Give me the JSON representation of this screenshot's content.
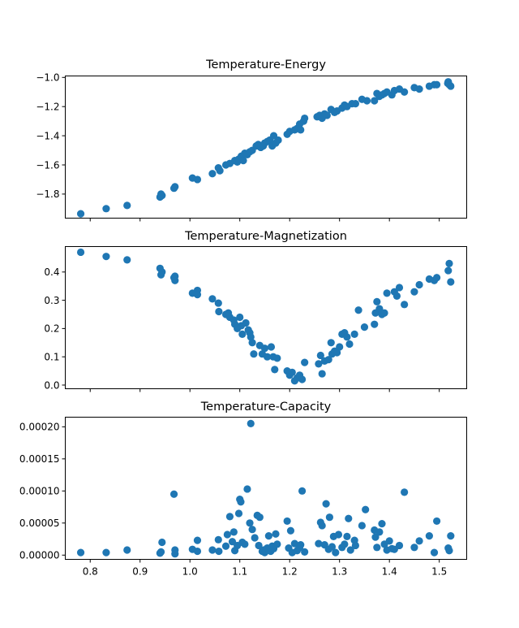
{
  "chart_data": [
    {
      "type": "scatter",
      "title": "Temperature-Energy",
      "xlabel": "",
      "ylabel": "",
      "xlim": [
        0.75,
        1.555
      ],
      "ylim": [
        -1.965,
        -0.99
      ],
      "xticks": [],
      "yticks": [
        {
          "v": -1.0,
          "label": "−1.0"
        },
        {
          "v": -1.2,
          "label": "−1.2"
        },
        {
          "v": -1.4,
          "label": "−1.4"
        },
        {
          "v": -1.6,
          "label": "−1.6"
        },
        {
          "v": -1.8,
          "label": "−1.8"
        }
      ],
      "color": "#1f77b4",
      "points": [
        [
          0.781,
          -1.935
        ],
        [
          0.832,
          -1.9
        ],
        [
          0.874,
          -1.878
        ],
        [
          0.94,
          -1.82
        ],
        [
          0.942,
          -1.8
        ],
        [
          0.944,
          -1.81
        ],
        [
          0.968,
          -1.76
        ],
        [
          0.97,
          -1.75
        ],
        [
          1.005,
          -1.69
        ],
        [
          1.015,
          -1.7
        ],
        [
          1.045,
          -1.66
        ],
        [
          1.057,
          -1.62
        ],
        [
          1.06,
          -1.64
        ],
        [
          1.072,
          -1.6
        ],
        [
          1.08,
          -1.59
        ],
        [
          1.09,
          -1.57
        ],
        [
          1.095,
          -1.58
        ],
        [
          1.098,
          -1.56
        ],
        [
          1.103,
          -1.54
        ],
        [
          1.107,
          -1.57
        ],
        [
          1.11,
          -1.52
        ],
        [
          1.115,
          -1.53
        ],
        [
          1.12,
          -1.51
        ],
        [
          1.125,
          -1.5
        ],
        [
          1.133,
          -1.47
        ],
        [
          1.137,
          -1.46
        ],
        [
          1.142,
          -1.48
        ],
        [
          1.147,
          -1.47
        ],
        [
          1.15,
          -1.45
        ],
        [
          1.155,
          -1.44
        ],
        [
          1.16,
          -1.43
        ],
        [
          1.165,
          -1.47
        ],
        [
          1.168,
          -1.4
        ],
        [
          1.172,
          -1.45
        ],
        [
          1.177,
          -1.43
        ],
        [
          1.195,
          -1.39
        ],
        [
          1.2,
          -1.37
        ],
        [
          1.21,
          -1.36
        ],
        [
          1.215,
          -1.35
        ],
        [
          1.22,
          -1.32
        ],
        [
          1.222,
          -1.36
        ],
        [
          1.228,
          -1.3
        ],
        [
          1.23,
          -1.28
        ],
        [
          1.255,
          -1.27
        ],
        [
          1.26,
          -1.26
        ],
        [
          1.265,
          -1.28
        ],
        [
          1.27,
          -1.25
        ],
        [
          1.275,
          -1.26
        ],
        [
          1.283,
          -1.22
        ],
        [
          1.29,
          -1.24
        ],
        [
          1.295,
          -1.23
        ],
        [
          1.305,
          -1.21
        ],
        [
          1.31,
          -1.19
        ],
        [
          1.315,
          -1.2
        ],
        [
          1.325,
          -1.18
        ],
        [
          1.332,
          -1.18
        ],
        [
          1.345,
          -1.15
        ],
        [
          1.355,
          -1.16
        ],
        [
          1.37,
          -1.16
        ],
        [
          1.375,
          -1.11
        ],
        [
          1.38,
          -1.13
        ],
        [
          1.385,
          -1.12
        ],
        [
          1.39,
          -1.11
        ],
        [
          1.395,
          -1.1
        ],
        [
          1.405,
          -1.12
        ],
        [
          1.41,
          -1.09
        ],
        [
          1.42,
          -1.08
        ],
        [
          1.43,
          -1.1
        ],
        [
          1.45,
          -1.07
        ],
        [
          1.46,
          -1.08
        ],
        [
          1.48,
          -1.06
        ],
        [
          1.49,
          -1.05
        ],
        [
          1.495,
          -1.05
        ],
        [
          1.517,
          -1.04
        ],
        [
          1.52,
          -1.05
        ],
        [
          1.523,
          -1.06
        ],
        [
          1.518,
          -1.03
        ]
      ]
    },
    {
      "type": "scatter",
      "title": "Temperature-Magnetization",
      "xlabel": "",
      "ylabel": "",
      "xlim": [
        0.75,
        1.555
      ],
      "ylim": [
        -0.013,
        0.49
      ],
      "xticks": [],
      "yticks": [
        {
          "v": 0.0,
          "label": "0.0"
        },
        {
          "v": 0.1,
          "label": "0.1"
        },
        {
          "v": 0.2,
          "label": "0.2"
        },
        {
          "v": 0.3,
          "label": "0.3"
        },
        {
          "v": 0.4,
          "label": "0.4"
        }
      ],
      "color": "#1f77b4",
      "points": [
        [
          0.781,
          0.47
        ],
        [
          0.832,
          0.455
        ],
        [
          0.874,
          0.443
        ],
        [
          0.94,
          0.413
        ],
        [
          0.944,
          0.4
        ],
        [
          0.942,
          0.39
        ],
        [
          0.968,
          0.38
        ],
        [
          0.97,
          0.37
        ],
        [
          0.97,
          0.385
        ],
        [
          1.005,
          0.325
        ],
        [
          1.015,
          0.335
        ],
        [
          1.015,
          0.32
        ],
        [
          1.045,
          0.305
        ],
        [
          1.057,
          0.29
        ],
        [
          1.058,
          0.26
        ],
        [
          1.072,
          0.25
        ],
        [
          1.077,
          0.255
        ],
        [
          1.08,
          0.24
        ],
        [
          1.088,
          0.23
        ],
        [
          1.09,
          0.215
        ],
        [
          1.095,
          0.2
        ],
        [
          1.1,
          0.24
        ],
        [
          1.103,
          0.21
        ],
        [
          1.105,
          0.18
        ],
        [
          1.112,
          0.22
        ],
        [
          1.117,
          0.195
        ],
        [
          1.12,
          0.185
        ],
        [
          1.122,
          0.17
        ],
        [
          1.125,
          0.15
        ],
        [
          1.128,
          0.11
        ],
        [
          1.14,
          0.14
        ],
        [
          1.145,
          0.11
        ],
        [
          1.15,
          0.13
        ],
        [
          1.155,
          0.1
        ],
        [
          1.163,
          0.135
        ],
        [
          1.167,
          0.1
        ],
        [
          1.17,
          0.055
        ],
        [
          1.175,
          0.095
        ],
        [
          1.195,
          0.05
        ],
        [
          1.2,
          0.035
        ],
        [
          1.205,
          0.045
        ],
        [
          1.21,
          0.015
        ],
        [
          1.215,
          0.025
        ],
        [
          1.22,
          0.035
        ],
        [
          1.225,
          0.02
        ],
        [
          1.23,
          0.08
        ],
        [
          1.258,
          0.075
        ],
        [
          1.262,
          0.105
        ],
        [
          1.265,
          0.04
        ],
        [
          1.27,
          0.085
        ],
        [
          1.278,
          0.09
        ],
        [
          1.283,
          0.15
        ],
        [
          1.285,
          0.11
        ],
        [
          1.29,
          0.12
        ],
        [
          1.295,
          0.115
        ],
        [
          1.3,
          0.135
        ],
        [
          1.305,
          0.18
        ],
        [
          1.31,
          0.185
        ],
        [
          1.315,
          0.17
        ],
        [
          1.32,
          0.145
        ],
        [
          1.33,
          0.18
        ],
        [
          1.338,
          0.265
        ],
        [
          1.35,
          0.205
        ],
        [
          1.37,
          0.215
        ],
        [
          1.372,
          0.255
        ],
        [
          1.375,
          0.295
        ],
        [
          1.38,
          0.27
        ],
        [
          1.385,
          0.25
        ],
        [
          1.39,
          0.255
        ],
        [
          1.395,
          0.325
        ],
        [
          1.41,
          0.33
        ],
        [
          1.415,
          0.315
        ],
        [
          1.42,
          0.345
        ],
        [
          1.43,
          0.285
        ],
        [
          1.45,
          0.33
        ],
        [
          1.46,
          0.355
        ],
        [
          1.48,
          0.375
        ],
        [
          1.49,
          0.37
        ],
        [
          1.495,
          0.38
        ],
        [
          1.52,
          0.43
        ],
        [
          1.518,
          0.405
        ],
        [
          1.523,
          0.365
        ]
      ]
    },
    {
      "type": "scatter",
      "title": "Temperature-Capacity",
      "xlabel": "",
      "ylabel": "",
      "xlim": [
        0.75,
        1.555
      ],
      "ylim": [
        -6.6e-06,
        0.000215
      ],
      "xticks": [
        {
          "v": 0.8,
          "label": "0.8"
        },
        {
          "v": 0.9,
          "label": "0.9"
        },
        {
          "v": 1.0,
          "label": "1.0"
        },
        {
          "v": 1.1,
          "label": "1.1"
        },
        {
          "v": 1.2,
          "label": "1.2"
        },
        {
          "v": 1.3,
          "label": "1.3"
        },
        {
          "v": 1.4,
          "label": "1.4"
        },
        {
          "v": 1.5,
          "label": "1.5"
        }
      ],
      "yticks": [
        {
          "v": 0.0,
          "label": "0.00000"
        },
        {
          "v": 5e-05,
          "label": "0.00005"
        },
        {
          "v": 0.0001,
          "label": "0.00010"
        },
        {
          "v": 0.00015,
          "label": "0.00015"
        },
        {
          "v": 0.0002,
          "label": "0.00020"
        }
      ],
      "color": "#1f77b4",
      "points": [
        [
          0.781,
          4e-06
        ],
        [
          0.832,
          4e-06
        ],
        [
          0.874,
          8e-06
        ],
        [
          0.94,
          3e-06
        ],
        [
          0.942,
          5e-06
        ],
        [
          0.944,
          2e-05
        ],
        [
          0.968,
          9.5e-05
        ],
        [
          0.97,
          8e-06
        ],
        [
          0.97,
          2e-06
        ],
        [
          1.005,
          9e-06
        ],
        [
          1.015,
          6e-06
        ],
        [
          1.015,
          2.3e-05
        ],
        [
          1.045,
          8e-06
        ],
        [
          1.057,
          2.4e-05
        ],
        [
          1.058,
          6e-06
        ],
        [
          1.072,
          1.4e-05
        ],
        [
          1.075,
          3.2e-05
        ],
        [
          1.08,
          6e-05
        ],
        [
          1.085,
          2.1e-05
        ],
        [
          1.088,
          3.6e-05
        ],
        [
          1.09,
          7e-06
        ],
        [
          1.095,
          1.5e-05
        ],
        [
          1.098,
          6.5e-05
        ],
        [
          1.1,
          8.7e-05
        ],
        [
          1.102,
          8.3e-05
        ],
        [
          1.105,
          2e-05
        ],
        [
          1.11,
          1.7e-05
        ],
        [
          1.115,
          0.000103
        ],
        [
          1.12,
          5e-05
        ],
        [
          1.122,
          0.000205
        ],
        [
          1.125,
          4e-05
        ],
        [
          1.13,
          2.7e-05
        ],
        [
          1.135,
          6.2e-05
        ],
        [
          1.138,
          1.5e-05
        ],
        [
          1.14,
          5.9e-05
        ],
        [
          1.145,
          6e-06
        ],
        [
          1.148,
          8e-06
        ],
        [
          1.15,
          4e-06
        ],
        [
          1.155,
          1.1e-05
        ],
        [
          1.158,
          3e-05
        ],
        [
          1.162,
          6e-06
        ],
        [
          1.165,
          1.4e-05
        ],
        [
          1.168,
          1e-05
        ],
        [
          1.172,
          3.3e-05
        ],
        [
          1.175,
          1.7e-05
        ],
        [
          1.195,
          5.3e-05
        ],
        [
          1.198,
          1.1e-05
        ],
        [
          1.202,
          3.8e-05
        ],
        [
          1.205,
          4e-06
        ],
        [
          1.21,
          1.8e-05
        ],
        [
          1.215,
          7e-06
        ],
        [
          1.22,
          1.2e-05
        ],
        [
          1.222,
          1.6e-05
        ],
        [
          1.225,
          0.0001
        ],
        [
          1.23,
          5e-06
        ],
        [
          1.258,
          1.8e-05
        ],
        [
          1.262,
          5.1e-05
        ],
        [
          1.265,
          4.6e-05
        ],
        [
          1.27,
          1.6e-05
        ],
        [
          1.273,
          8e-05
        ],
        [
          1.278,
          9e-06
        ],
        [
          1.28,
          5.9e-05
        ],
        [
          1.285,
          1.3e-05
        ],
        [
          1.288,
          2.9e-05
        ],
        [
          1.292,
          4e-06
        ],
        [
          1.298,
          3.2e-05
        ],
        [
          1.305,
          1.2e-05
        ],
        [
          1.31,
          1.7e-05
        ],
        [
          1.315,
          2.9e-05
        ],
        [
          1.318,
          5.7e-05
        ],
        [
          1.322,
          8e-06
        ],
        [
          1.33,
          2.3e-05
        ],
        [
          1.332,
          1.5e-05
        ],
        [
          1.345,
          4.6e-05
        ],
        [
          1.352,
          7.1e-05
        ],
        [
          1.37,
          3.9e-05
        ],
        [
          1.372,
          2.8e-05
        ],
        [
          1.375,
          1.2e-05
        ],
        [
          1.38,
          3.6e-05
        ],
        [
          1.385,
          4.9e-05
        ],
        [
          1.39,
          1.7e-05
        ],
        [
          1.395,
          8e-06
        ],
        [
          1.4,
          2.2e-05
        ],
        [
          1.405,
          1e-05
        ],
        [
          1.41,
          9e-06
        ],
        [
          1.42,
          1.5e-05
        ],
        [
          1.43,
          9.8e-05
        ],
        [
          1.45,
          1.2e-05
        ],
        [
          1.46,
          2.2e-05
        ],
        [
          1.48,
          3e-05
        ],
        [
          1.49,
          4e-06
        ],
        [
          1.495,
          5.3e-05
        ],
        [
          1.518,
          1.1e-05
        ],
        [
          1.52,
          7e-06
        ],
        [
          1.523,
          3e-05
        ]
      ]
    }
  ]
}
